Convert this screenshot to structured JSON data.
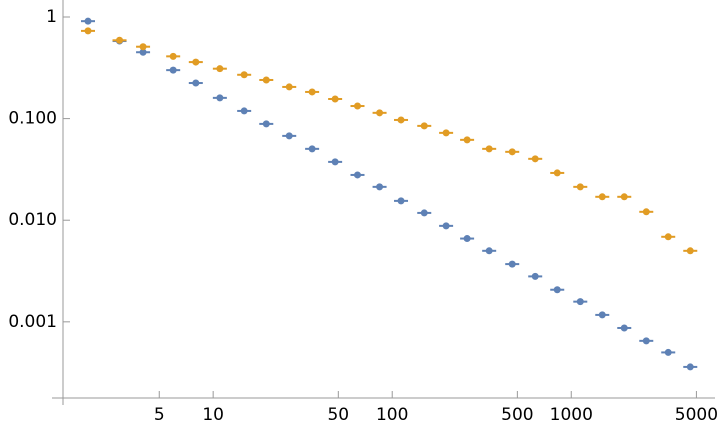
{
  "chart_data": {
    "type": "scatter",
    "log_x": true,
    "log_y": true,
    "x": [
      2.0,
      3.0,
      4.06,
      5.98,
      8.0,
      10.9,
      14.9,
      19.8,
      26.6,
      35.7,
      48,
      64,
      85,
      112,
      151,
      200,
      262,
      348,
      468,
      629,
      835,
      1123,
      1490,
      1977,
      2624,
      3480,
      4620
    ],
    "series": [
      {
        "color": "#5e81b5",
        "values": [
          0.91,
          0.58,
          0.45,
          0.3,
          0.224,
          0.16,
          0.119,
          0.0887,
          0.0676,
          0.0504,
          0.0375,
          0.0279,
          0.0213,
          0.0155,
          0.0118,
          0.0088,
          0.0066,
          0.005,
          0.0037,
          0.0028,
          0.00207,
          0.00158,
          0.00117,
          0.00087,
          0.00065,
          0.0005,
          0.00036
        ]
      },
      {
        "color": "#e19c24",
        "values": [
          0.73,
          0.59,
          0.51,
          0.41,
          0.36,
          0.31,
          0.27,
          0.24,
          0.205,
          0.183,
          0.156,
          0.133,
          0.114,
          0.097,
          0.0848,
          0.0724,
          0.0618,
          0.0504,
          0.0471,
          0.0402,
          0.0292,
          0.0213,
          0.017,
          0.017,
          0.0121,
          0.00687,
          0.005
        ]
      }
    ],
    "xlim": [
      1.45,
      6350
    ],
    "ylim": [
      0.000178,
      1.47
    ],
    "xticks": [
      5,
      10,
      50,
      100,
      500,
      1000,
      5000
    ],
    "yticks": [
      1,
      {
        "value": 0.1,
        "label": "0.100"
      },
      {
        "value": 0.01,
        "label": "0.010"
      },
      {
        "value": 0.001,
        "label": "0.001"
      }
    ]
  }
}
